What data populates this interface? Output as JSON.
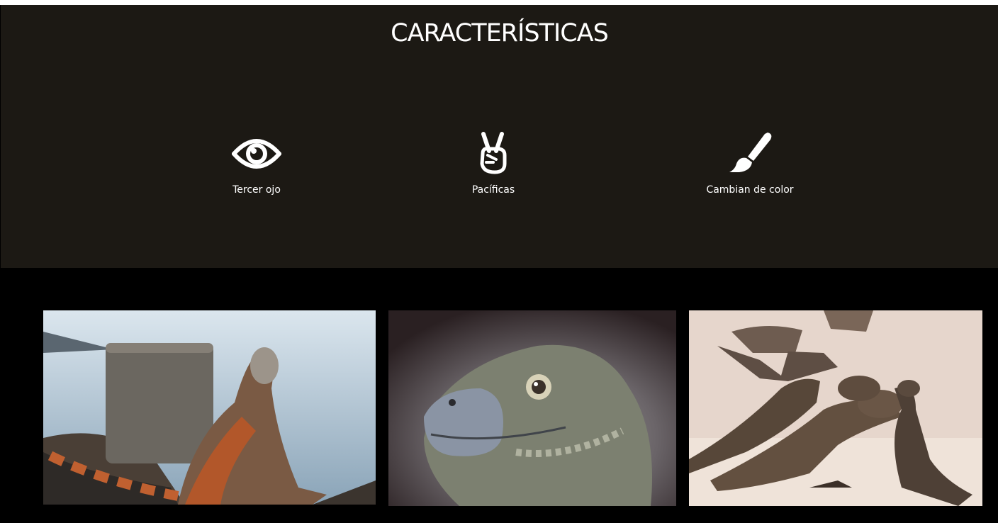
{
  "features": {
    "title": "CARACTERÍSTICAS",
    "background": "#1c1914",
    "items": [
      {
        "icon": "eye-icon",
        "label": "Tercer ojo"
      },
      {
        "icon": "peace-hand-icon",
        "label": "Pacíficas"
      },
      {
        "icon": "paintbrush-icon",
        "label": "Cambian de color"
      }
    ]
  },
  "gallery": {
    "images": [
      {
        "subject": "iguana-on-rocks-by-water"
      },
      {
        "subject": "iguana-head-closeup"
      },
      {
        "subject": "group-of-iguanas-on-sand"
      }
    ]
  }
}
